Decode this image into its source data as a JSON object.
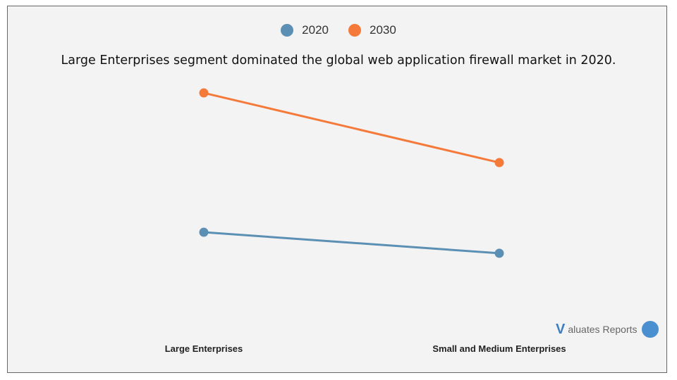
{
  "chart_data": {
    "type": "line",
    "title": "Large Enterprises segment dominated the global web application firewall market in 2020.",
    "categories": [
      "Large Enterprises",
      "Small and Medium Enterprises"
    ],
    "series": [
      {
        "name": "2020",
        "color": "#5b8fb3",
        "values": [
          36.1,
          27.8
        ]
      },
      {
        "name": "2030",
        "color": "#f57a3a",
        "values": [
          91.1,
          63.6
        ]
      }
    ],
    "ylim": [
      0,
      100
    ],
    "y_axis_visible": false,
    "grid": false,
    "legend_position": "top-center"
  },
  "logo": {
    "text": "Valuates Reports",
    "mark": "V",
    "rest": "aluates",
    "reports": "Reports"
  }
}
